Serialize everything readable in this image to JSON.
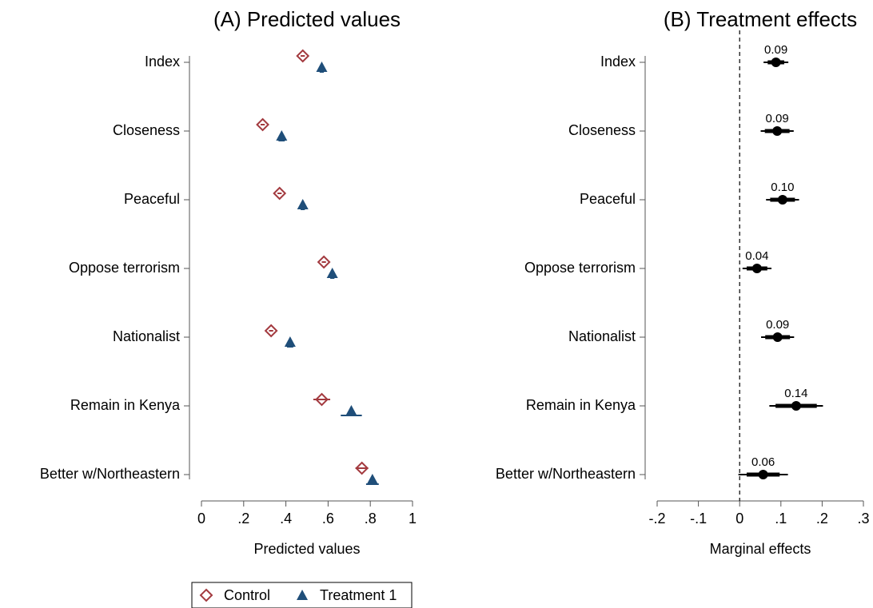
{
  "chart_data": [
    {
      "type": "dot",
      "title": "(A) Predicted values",
      "x_label": "Predicted values",
      "categories": [
        "Index",
        "Closeness",
        "Peaceful",
        "Oppose terrorism",
        "Nationalist",
        "Remain in Kenya",
        "Better w/Northeastern"
      ],
      "series": [
        {
          "name": "Control",
          "color": "#a33a3f",
          "marker": "diamond",
          "values": [
            0.48,
            0.29,
            0.37,
            0.58,
            0.33,
            0.57,
            0.76
          ],
          "errors": [
            0.01,
            0.01,
            0.01,
            0.01,
            0.01,
            0.04,
            0.03
          ]
        },
        {
          "name": "Treatment 1",
          "color": "#1f4e79",
          "marker": "triangle",
          "values": [
            0.57,
            0.38,
            0.48,
            0.62,
            0.42,
            0.71,
            0.81
          ],
          "errors": [
            0.01,
            0.015,
            0.01,
            0.01,
            0.015,
            0.05,
            0.03
          ]
        }
      ],
      "xlim": [
        0,
        1
      ],
      "xticks": [
        0,
        {
          "value": 0.2,
          "label": ".2"
        },
        {
          "value": 0.4,
          "label": ".4"
        },
        {
          "value": 0.6,
          "label": ".6"
        },
        {
          "value": 0.8,
          "label": ".8"
        },
        1
      ],
      "legend": "bottom"
    },
    {
      "type": "coefficient",
      "title": "(B) Treatment effects",
      "x_label": "Marginal effects",
      "categories": [
        "Index",
        "Closeness",
        "Peaceful",
        "Oppose terrorism",
        "Nationalist",
        "Remain in Kenya",
        "Better w/Northeastern"
      ],
      "values": [
        0.088,
        0.091,
        0.104,
        0.042,
        0.092,
        0.137,
        0.057
      ],
      "value_labels": [
        "0.09",
        "0.09",
        "0.10",
        "0.04",
        "0.09",
        "0.14",
        "0.06"
      ],
      "errors": [
        0.03,
        0.04,
        0.04,
        0.035,
        0.04,
        0.065,
        0.06
      ],
      "errors90": [
        0.02,
        0.03,
        0.03,
        0.025,
        0.03,
        0.05,
        0.04
      ],
      "color": "#000000",
      "xlim": [
        -0.2,
        0.3
      ],
      "xticks": [
        {
          "value": -0.2,
          "label": "-.2"
        },
        {
          "value": -0.1,
          "label": "-.1"
        },
        0,
        {
          "value": 0.1,
          "label": ".1"
        },
        {
          "value": 0.2,
          "label": ".2"
        },
        {
          "value": 0.3,
          "label": ".3"
        }
      ],
      "reference_line": 0
    }
  ]
}
